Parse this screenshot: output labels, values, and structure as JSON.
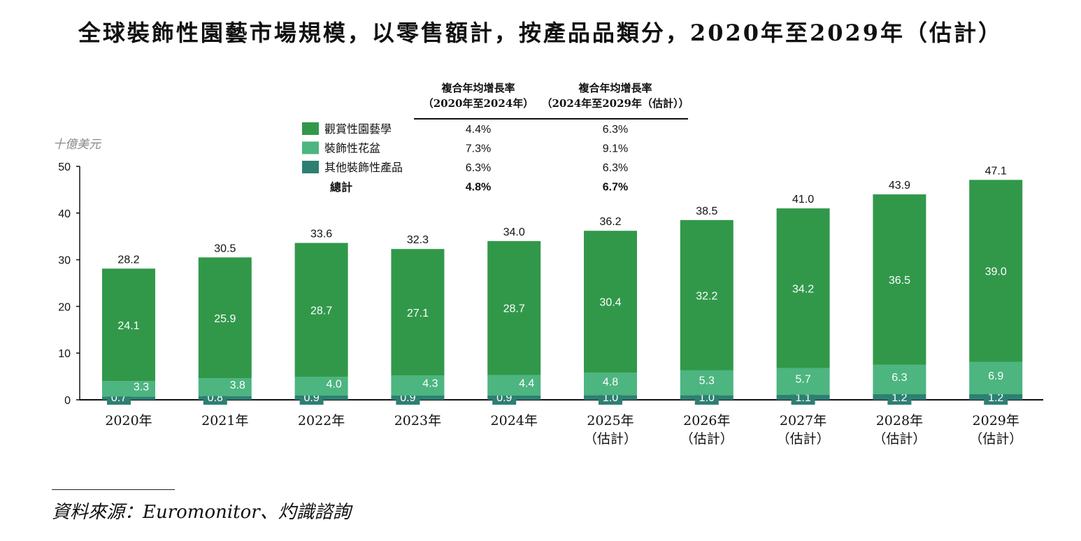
{
  "title": "全球裝飾性園藝市場規模，以零售額計，按產品品類分，2020年至2029年（估計）",
  "source_note": "資料來源：Euromonitor、灼識諮詢",
  "colors": {
    "ornamental": "#31984a",
    "pots": "#4cb580",
    "other": "#2e7f71",
    "axis": "#111111"
  },
  "chart_data": {
    "type": "bar",
    "stacked": true,
    "unit_label": "十億美元",
    "ylim": [
      0,
      50
    ],
    "yticks": [
      0,
      10,
      20,
      30,
      40,
      50
    ],
    "categories": [
      [
        "2020年"
      ],
      [
        "2021年"
      ],
      [
        "2022年"
      ],
      [
        "2023年"
      ],
      [
        "2024年"
      ],
      [
        "2025年",
        "（估計）"
      ],
      [
        "2026年",
        "（估計）"
      ],
      [
        "2027年",
        "（估計）"
      ],
      [
        "2028年",
        "（估計）"
      ],
      [
        "2029年",
        "（估計）"
      ]
    ],
    "series": [
      {
        "name": "其他裝飾性產品",
        "color_key": "other",
        "values": [
          0.7,
          0.8,
          0.9,
          0.9,
          0.9,
          1.0,
          1.0,
          1.1,
          1.2,
          1.2
        ]
      },
      {
        "name": "裝飾性花盆",
        "color_key": "pots",
        "values": [
          3.3,
          3.8,
          4.0,
          4.3,
          4.4,
          4.8,
          5.3,
          5.7,
          6.3,
          6.9
        ]
      },
      {
        "name": "觀賞性園藝學",
        "color_key": "ornamental",
        "values": [
          24.1,
          25.9,
          28.7,
          27.1,
          28.7,
          30.4,
          32.2,
          34.2,
          36.5,
          39.0
        ]
      }
    ],
    "totals": [
      "28.2",
      "30.5",
      "33.6",
      "32.3",
      "34.0",
      "36.2",
      "38.5",
      "41.0",
      "43.9",
      "47.1"
    ],
    "legend": {
      "placement": "top-left",
      "headers": [
        [
          "複合年均增長率",
          "（2020年至2024年）"
        ],
        [
          "複合年均增長率",
          "（2024年至2029年（估計））"
        ]
      ],
      "rows": [
        {
          "name": "觀賞性園藝學",
          "color_key": "ornamental",
          "cagr": [
            "4.4%",
            "6.3%"
          ]
        },
        {
          "name": "裝飾性花盆",
          "color_key": "pots",
          "cagr": [
            "7.3%",
            "9.1%"
          ]
        },
        {
          "name": "其他裝飾性產品",
          "color_key": "other",
          "cagr": [
            "6.3%",
            "6.3%"
          ]
        },
        {
          "name": "總計",
          "color_key": null,
          "cagr": [
            "4.8%",
            "6.7%"
          ],
          "bold": true
        }
      ]
    }
  }
}
